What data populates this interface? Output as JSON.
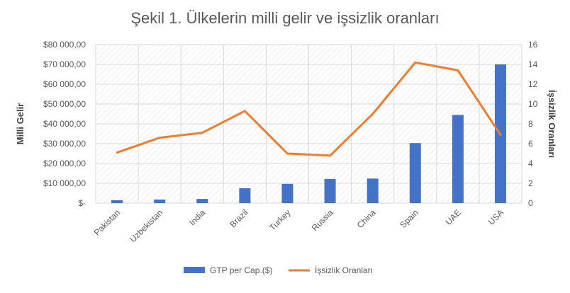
{
  "chart_data": {
    "type": "bar+line",
    "title": "Şekil 1. Ülkelerin milli gelir ve işsizlik oranları",
    "categories": [
      "Pakistan",
      "Uzbekistan",
      "India",
      "Brazil",
      "Turkey",
      "Russia",
      "China",
      "Spain",
      "UAE",
      "USA"
    ],
    "y_left": {
      "label": "Milli Gelir",
      "ylim": [
        0,
        80000
      ],
      "ticks": [
        0,
        10000,
        20000,
        30000,
        40000,
        50000,
        60000,
        70000,
        80000
      ],
      "tick_labels": [
        "$-",
        "$10 000,00",
        "$20 000,00",
        "$30 000,00",
        "$40 000,00",
        "$50 000,00",
        "$60 000,00",
        "$70 000,00",
        "$80 000,00"
      ]
    },
    "y_right": {
      "label": "İşsizlik Oranları",
      "ylim": [
        0,
        16
      ],
      "ticks": [
        0,
        2,
        4,
        6,
        8,
        10,
        12,
        14,
        16
      ],
      "tick_labels": [
        "0",
        "2",
        "4",
        "6",
        "8",
        "10",
        "12",
        "14",
        "16"
      ]
    },
    "series": [
      {
        "name": "GTP per Cap.($)",
        "type": "bar",
        "axis": "left",
        "color": "#4472C4",
        "values": [
          1500,
          1800,
          2100,
          7500,
          9700,
          12200,
          12400,
          30300,
          44500,
          70000
        ]
      },
      {
        "name": "İşsizlik Oranları",
        "type": "line",
        "axis": "right",
        "color": "#ED7D31",
        "values": [
          5.1,
          6.6,
          7.1,
          9.3,
          5.0,
          4.8,
          9.0,
          14.2,
          13.4,
          6.9
        ]
      }
    ],
    "grid": true,
    "legend_position": "bottom"
  }
}
